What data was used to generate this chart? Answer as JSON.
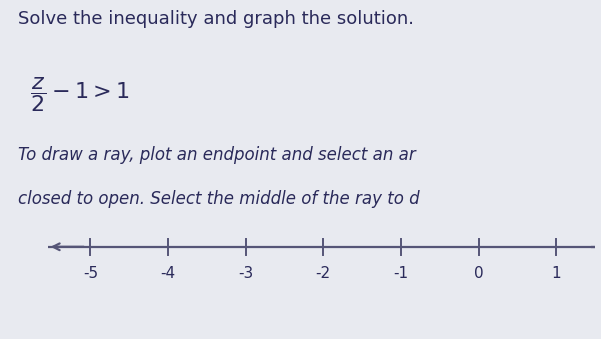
{
  "title": "Solve the inequality and graph the solution.",
  "instruction_line1": "To draw a ray, plot an endpoint and select an ar",
  "instruction_line2": "closed to open. Select the middle of the ray to d",
  "bg_color": "#e8eaf0",
  "text_color": "#2a2a5a",
  "axis_color": "#555577",
  "tick_labels": [
    "-5",
    "-4",
    "-3",
    "-2",
    "-1",
    "0",
    "1"
  ],
  "tick_values": [
    -5,
    -4,
    -3,
    -2,
    -1,
    0,
    1
  ],
  "xlim": [
    -5.7,
    1.5
  ],
  "title_fontsize": 13,
  "eq_fontsize": 14,
  "instr_fontsize": 12,
  "tick_fontsize": 11,
  "bottom_bar_color": "#4caf50",
  "bottom_bar_height": 0.072
}
